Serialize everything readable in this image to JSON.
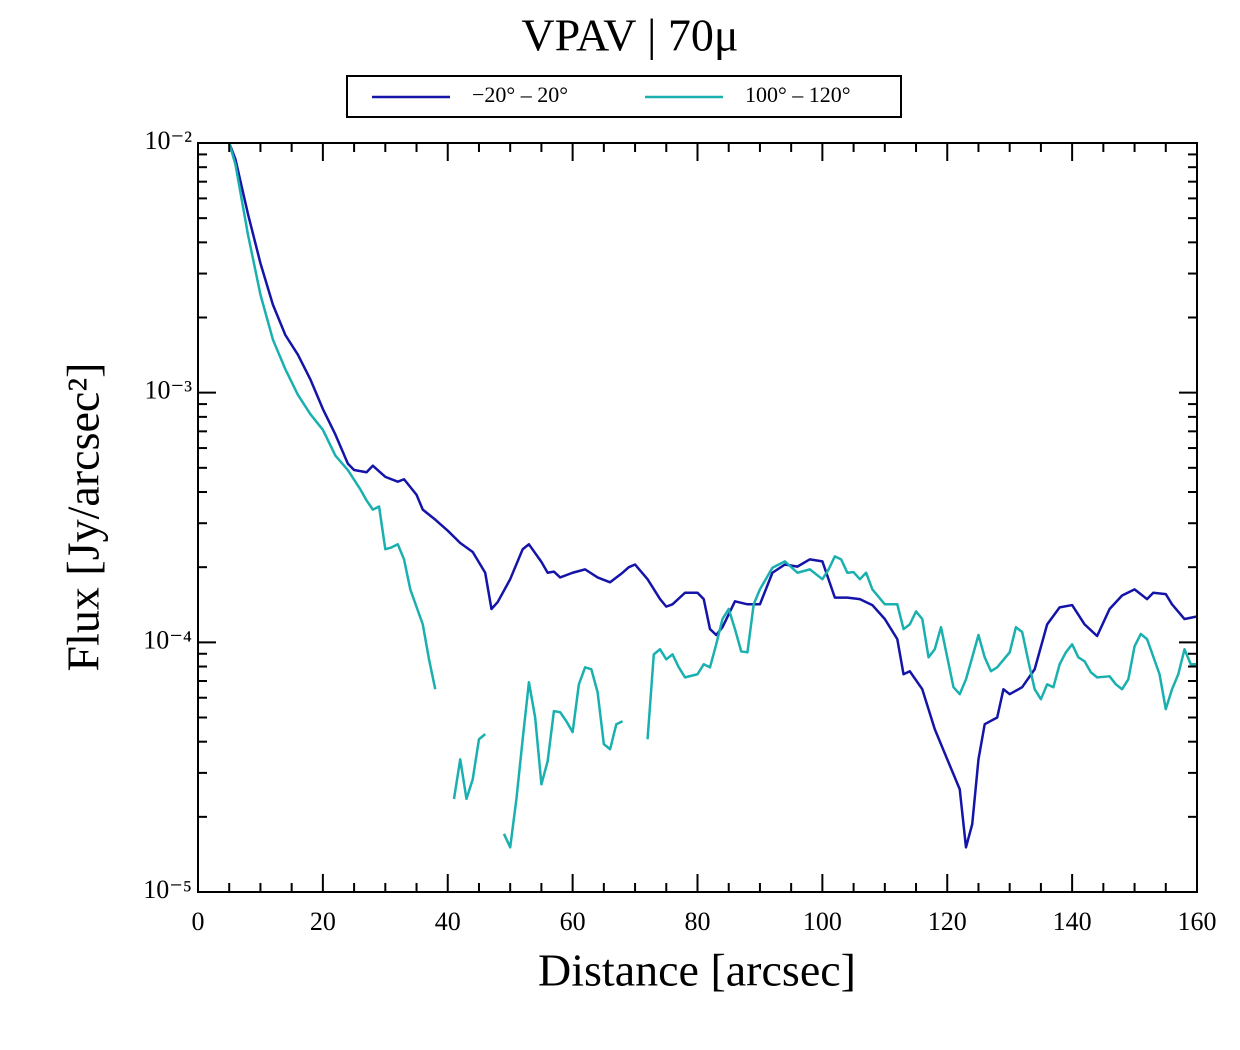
{
  "chart_data": {
    "type": "line",
    "title": "VPAV | 70μ",
    "xlabel": "Distance [arcsec]",
    "ylabel": "Flux [Jy/arcsec²]",
    "xlim": [
      0,
      160
    ],
    "xticks": [
      0,
      20,
      40,
      60,
      80,
      100,
      120,
      140,
      160
    ],
    "ylim": [
      1e-05,
      0.01
    ],
    "yticks": [
      {
        "value": 0.01,
        "label": "10⁻²"
      },
      {
        "value": 0.001,
        "label": "10⁻³"
      },
      {
        "value": 0.0001,
        "label": "10⁻⁴"
      },
      {
        "value": 1e-05,
        "label": "10⁻⁵"
      }
    ],
    "yscale": "log",
    "legend": "top",
    "series": [
      {
        "name": "−20° – 20°",
        "color": "#1414a8",
        "x": [
          5,
          6,
          8,
          10,
          12,
          14,
          16,
          18,
          20,
          22,
          24,
          25,
          27,
          28,
          30,
          32,
          33,
          35,
          36,
          38,
          40,
          42,
          44,
          46,
          47,
          48,
          50,
          52,
          53,
          55,
          56,
          57,
          58,
          60,
          62,
          64,
          66,
          68,
          69,
          70,
          72,
          74,
          75,
          76,
          78,
          80,
          81,
          82,
          83,
          84,
          86,
          88,
          90,
          92,
          94,
          96,
          98,
          100,
          102,
          104,
          106,
          108,
          110,
          112,
          113,
          114,
          116,
          118,
          120,
          122,
          123,
          124,
          125,
          126,
          128,
          129,
          130,
          132,
          134,
          136,
          138,
          140,
          142,
          144,
          146,
          148,
          150,
          152,
          153,
          155,
          156,
          158,
          160
        ],
        "values": [
          0.01,
          0.0086,
          0.0052,
          0.0033,
          0.00225,
          0.0017,
          0.00142,
          0.00113,
          0.00086,
          0.00068,
          0.00052,
          0.00049,
          0.00048,
          0.00051,
          0.00046,
          0.00044,
          0.00045,
          0.00039,
          0.00034,
          0.00031,
          0.00028,
          0.00025,
          0.00023,
          0.00019,
          0.000136,
          0.000145,
          0.000179,
          0.000236,
          0.000247,
          0.00021,
          0.00019,
          0.000192,
          0.000182,
          0.00019,
          0.000196,
          0.000182,
          0.000174,
          0.00019,
          0.0002,
          0.000205,
          0.000179,
          0.000149,
          0.000139,
          0.000142,
          0.000158,
          0.000158,
          0.000149,
          0.000113,
          0.000107,
          0.000115,
          0.000146,
          0.000142,
          0.000142,
          0.00019,
          0.000205,
          0.000201,
          0.000215,
          0.000211,
          0.000151,
          0.000151,
          0.000149,
          0.000141,
          0.000124,
          0.000103,
          7.45e-05,
          7.66e-05,
          6.49e-05,
          4.49e-05,
          3.4e-05,
          2.58e-05,
          1.51e-05,
          1.87e-05,
          3.4e-05,
          4.7e-05,
          5e-05,
          6.49e-05,
          6.2e-05,
          6.61e-05,
          7.8e-05,
          0.000118,
          0.000138,
          0.000141,
          0.000118,
          0.000106,
          0.000136,
          0.000154,
          0.000163,
          0.000149,
          0.000158,
          0.000156,
          0.000142,
          0.000124,
          0.000127
        ]
      },
      {
        "name": "100° – 120°",
        "color": "#1ab0b0",
        "x": [
          5,
          6,
          8,
          10,
          12,
          14,
          16,
          18,
          20,
          22,
          24,
          26,
          27,
          28,
          29,
          30,
          31,
          32,
          33,
          34,
          36,
          37,
          38,
          39,
          41,
          42,
          43,
          44,
          45,
          46,
          47,
          49,
          50,
          51,
          52,
          53,
          54,
          55,
          56,
          57,
          58,
          59,
          60,
          61,
          62,
          63,
          64,
          65,
          66,
          67,
          68,
          70,
          72,
          73,
          74,
          75,
          76,
          77,
          78,
          80,
          81,
          82,
          83,
          84,
          85,
          86,
          87,
          88,
          89,
          90,
          92,
          94,
          96,
          98,
          100,
          101,
          102,
          103,
          104,
          105,
          106,
          107,
          108,
          110,
          112,
          113,
          114,
          115,
          116,
          117,
          118,
          119,
          120,
          121,
          122,
          123,
          124,
          125,
          126,
          127,
          128,
          130,
          131,
          132,
          133,
          134,
          135,
          136,
          137,
          138,
          139,
          140,
          141,
          142,
          143,
          144,
          146,
          147,
          148,
          149,
          150,
          151,
          152,
          154,
          155,
          156,
          157,
          158,
          159,
          160
        ],
        "values": [
          0.01,
          0.0082,
          0.0043,
          0.00247,
          0.00163,
          0.00124,
          0.00098,
          0.00082,
          0.00071,
          0.00056,
          0.00049,
          0.00041,
          0.00037,
          0.00034,
          0.00035,
          0.000236,
          0.00024,
          0.000247,
          0.000215,
          0.000163,
          0.000118,
          8.55e-05,
          6.49e-05,
          null,
          2.36e-05,
          3.4e-05,
          2.36e-05,
          2.83e-05,
          4.09e-05,
          4.29e-05,
          null,
          1.71e-05,
          1.51e-05,
          2.36e-05,
          4.09e-05,
          6.92e-05,
          5e-05,
          2.7e-05,
          3.34e-05,
          5.3e-05,
          5.25e-05,
          4.83e-05,
          4.37e-05,
          6.79e-05,
          7.94e-05,
          7.8e-05,
          6.31e-05,
          3.91e-05,
          3.73e-05,
          4.7e-05,
          4.83e-05,
          null,
          4.09e-05,
          8.95e-05,
          9.38e-05,
          8.55e-05,
          8.95e-05,
          7.94e-05,
          7.24e-05,
          7.45e-05,
          8.17e-05,
          7.94e-05,
          9.82e-05,
          0.000124,
          0.000136,
          0.000113,
          9.2e-05,
          9.12e-05,
          0.000142,
          0.000163,
          0.000199,
          0.000211,
          0.00019,
          0.000196,
          0.000179,
          0.000196,
          0.000221,
          0.000215,
          0.00019,
          0.000191,
          0.000179,
          0.00019,
          0.000163,
          0.000142,
          0.000142,
          0.000113,
          0.000118,
          0.000133,
          0.000124,
          8.71e-05,
          9.38e-05,
          0.000115,
          8.71e-05,
          6.61e-05,
          6.2e-05,
          7.11e-05,
          8.71e-05,
          0.000107,
          8.71e-05,
          7.66e-05,
          7.94e-05,
          9.12e-05,
          0.000115,
          0.00011,
          8.39e-05,
          6.49e-05,
          5.92e-05,
          6.79e-05,
          6.61e-05,
          8.17e-05,
          9.12e-05,
          9.82e-05,
          8.71e-05,
          8.39e-05,
          7.59e-05,
          7.24e-05,
          7.31e-05,
          6.79e-05,
          6.49e-05,
          7.11e-05,
          9.64e-05,
          0.000108,
          0.000103,
          7.45e-05,
          5.4e-05,
          6.49e-05,
          7.45e-05,
          9.38e-05,
          8.17e-05,
          8.17e-05
        ]
      }
    ]
  }
}
